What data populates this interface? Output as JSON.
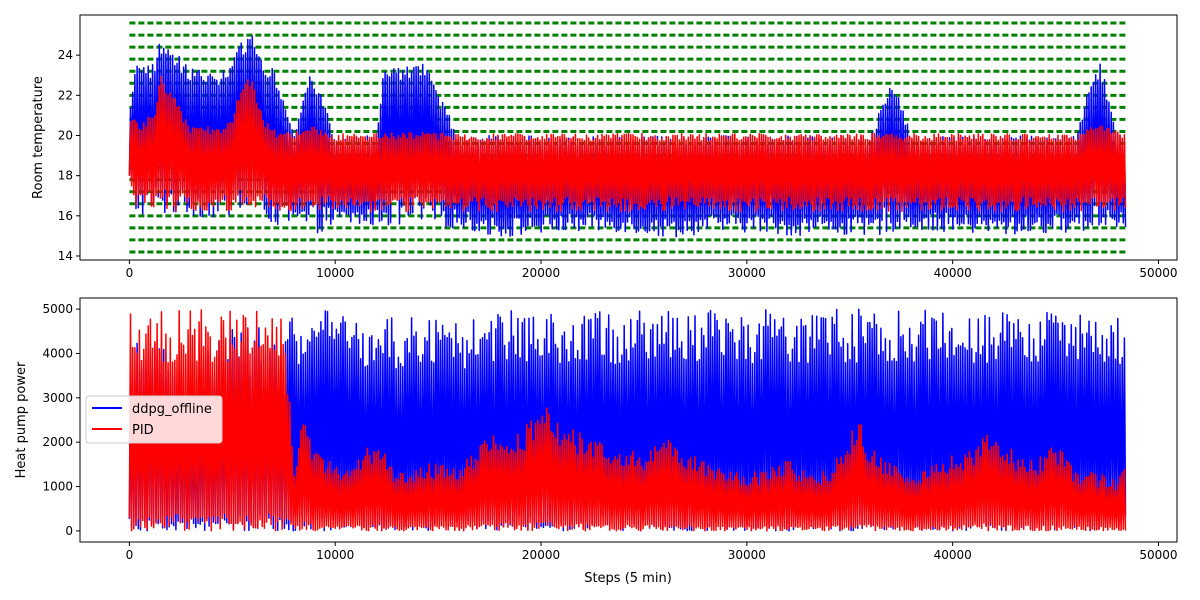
{
  "chart_data": [
    {
      "type": "line",
      "title": "",
      "xlabel": "",
      "ylabel": "Room temperature",
      "xlim": [
        -2400,
        50900
      ],
      "ylim": [
        13.8,
        26.0
      ],
      "xticks": [
        0,
        10000,
        20000,
        30000,
        40000,
        50000
      ],
      "yticks": [
        14,
        16,
        18,
        20,
        22,
        24
      ],
      "grid": false,
      "legend": null,
      "x_max_step": 48400,
      "comfort_bounds": {
        "name": "comfort band",
        "color": "#008000",
        "style": "dashed",
        "levels": [
          14.2,
          14.8,
          15.4,
          16.0,
          16.6,
          17.2,
          17.8,
          18.4,
          19.0,
          19.6,
          20.2,
          20.8,
          21.4,
          22.0,
          22.6,
          23.2,
          23.8,
          24.4,
          25.0,
          25.6
        ]
      },
      "series": [
        {
          "name": "ddpg_offline",
          "color": "#0000ff",
          "x": [
            0,
            300,
            600,
            900,
            1200,
            1500,
            3000,
            4500,
            5000,
            5400,
            5900,
            6500,
            7000,
            8000,
            8800,
            10000,
            12000,
            12300,
            13500,
            14000,
            14400,
            16000,
            18000,
            20000,
            22000,
            24000,
            26000,
            28000,
            30000,
            32000,
            34000,
            36000,
            37000,
            38000,
            40000,
            42000,
            44000,
            46000,
            46800,
            47200,
            48000,
            48400
          ],
          "y_high": [
            21.0,
            23.5,
            23.8,
            23.5,
            23.6,
            24.9,
            23.4,
            23.2,
            23.6,
            24.6,
            25.4,
            23.6,
            23.6,
            20.0,
            23.6,
            20.0,
            20.0,
            23.1,
            23.6,
            23.6,
            23.5,
            20.0,
            20.0,
            20.0,
            20.0,
            20.0,
            20.0,
            20.0,
            20.0,
            20.0,
            20.0,
            20.0,
            23.0,
            20.0,
            20.0,
            20.0,
            20.0,
            20.0,
            23.3,
            23.7,
            20.0,
            20.0
          ],
          "y_low": [
            17.5,
            16.0,
            16.0,
            16.0,
            16.0,
            16.0,
            16.0,
            15.8,
            16.0,
            16.0,
            16.0,
            16.0,
            15.5,
            15.5,
            15.0,
            15.5,
            15.5,
            15.5,
            15.4,
            15.4,
            15.4,
            15.4,
            14.9,
            15.1,
            15.2,
            15.2,
            14.9,
            15.1,
            15.2,
            15.0,
            15.1,
            14.9,
            15.2,
            15.3,
            15.2,
            15.0,
            15.1,
            15.2,
            15.2,
            15.3,
            15.4,
            15.4
          ]
        },
        {
          "name": "PID",
          "color": "#ff0000",
          "x": [
            0,
            300,
            600,
            900,
            1200,
            1500,
            3000,
            4500,
            5000,
            5400,
            5900,
            6500,
            7000,
            8000,
            8800,
            10000,
            12000,
            13500,
            16000,
            18000,
            20000,
            22000,
            24000,
            26000,
            28000,
            30000,
            32000,
            34000,
            36000,
            38000,
            40000,
            42000,
            44000,
            46000,
            47200,
            48400
          ],
          "y_high": [
            21.0,
            21.0,
            20.5,
            21.0,
            20.8,
            23.2,
            20.4,
            20.5,
            21.0,
            22.5,
            23.0,
            21.0,
            20.3,
            20.2,
            20.5,
            20.1,
            20.1,
            20.2,
            20.1,
            20.1,
            20.1,
            20.1,
            20.1,
            20.1,
            20.1,
            20.1,
            20.1,
            20.1,
            20.1,
            20.1,
            20.1,
            20.1,
            20.1,
            20.1,
            20.6,
            20.1
          ],
          "y_low": [
            17.5,
            16.3,
            16.3,
            16.4,
            16.3,
            16.2,
            16.2,
            16.2,
            16.2,
            16.2,
            16.2,
            16.2,
            16.2,
            16.2,
            16.2,
            16.2,
            16.2,
            16.2,
            16.2,
            16.2,
            16.2,
            16.2,
            16.2,
            16.2,
            16.2,
            16.2,
            16.2,
            16.2,
            16.2,
            16.2,
            16.2,
            16.2,
            16.2,
            16.2,
            16.2,
            16.2
          ]
        }
      ]
    },
    {
      "type": "line",
      "title": "",
      "xlabel": "Steps (5 min)",
      "ylabel": "Heat pump power",
      "xlim": [
        -2400,
        50900
      ],
      "ylim": [
        -250,
        5250
      ],
      "xticks": [
        0,
        10000,
        20000,
        30000,
        40000,
        50000
      ],
      "yticks": [
        0,
        1000,
        2000,
        3000,
        4000,
        5000
      ],
      "grid": false,
      "legend": "center-left",
      "series": [
        {
          "name": "ddpg_offline",
          "color": "#0000ff",
          "x": [
            0,
            1000,
            2000,
            3000,
            4000,
            5000,
            6000,
            7000,
            7500,
            8000,
            10000,
            12000,
            14000,
            16000,
            18000,
            20000,
            22000,
            24000,
            26000,
            28000,
            30000,
            32000,
            34000,
            36000,
            38000,
            40000,
            42000,
            44000,
            46000,
            47000,
            48000,
            48400
          ],
          "y_high": [
            4500,
            4400,
            4000,
            3500,
            4200,
            4800,
            4600,
            4600,
            4800,
            5000,
            5000,
            4700,
            5000,
            4800,
            5000,
            5000,
            5000,
            5000,
            5000,
            5000,
            5000,
            5000,
            5000,
            5000,
            5000,
            5000,
            5000,
            5000,
            4900,
            4700,
            4800,
            5000
          ],
          "y_low": [
            0,
            0,
            0,
            0,
            0,
            0,
            0,
            0,
            0,
            0,
            0,
            0,
            0,
            0,
            0,
            0,
            0,
            0,
            0,
            0,
            0,
            0,
            0,
            0,
            0,
            0,
            0,
            0,
            0,
            0,
            0,
            0
          ]
        },
        {
          "name": "PID",
          "color": "#ff0000",
          "x": [
            0,
            1000,
            2000,
            3000,
            4000,
            5000,
            6000,
            7000,
            7500,
            8000,
            8500,
            9000,
            10000,
            11000,
            12000,
            13000,
            14000,
            15000,
            16000,
            17000,
            18000,
            19000,
            20000,
            21000,
            22000,
            23000,
            24000,
            25000,
            26000,
            27000,
            28000,
            29000,
            30000,
            31000,
            32000,
            33000,
            34000,
            35000,
            35500,
            36000,
            37000,
            38000,
            39000,
            40000,
            41000,
            41700,
            42000,
            43000,
            44000,
            45000,
            46000,
            47000,
            48000,
            48400
          ],
          "y_high": [
            5000,
            5000,
            5000,
            5000,
            5000,
            5000,
            5000,
            5000,
            5000,
            1500,
            3100,
            1800,
            1500,
            1600,
            2100,
            1300,
            1400,
            1600,
            1500,
            1900,
            2400,
            2200,
            2900,
            2500,
            2200,
            2000,
            1900,
            1700,
            2300,
            1800,
            1600,
            1400,
            1300,
            1400,
            1600,
            1300,
            1400,
            2200,
            2500,
            1900,
            1500,
            1300,
            1500,
            1700,
            1900,
            2500,
            2200,
            1800,
            1600,
            2000,
            1400,
            1300,
            1200,
            1800
          ],
          "y_low": [
            0,
            0,
            0,
            0,
            0,
            0,
            0,
            0,
            0,
            0,
            0,
            0,
            0,
            0,
            0,
            0,
            0,
            0,
            0,
            0,
            0,
            0,
            0,
            0,
            0,
            0,
            0,
            0,
            0,
            0,
            0,
            0,
            0,
            0,
            0,
            0,
            0,
            0,
            0,
            0,
            0,
            0,
            0,
            0,
            0,
            0,
            0,
            0,
            0,
            0,
            0,
            0,
            0,
            0
          ]
        }
      ]
    }
  ]
}
